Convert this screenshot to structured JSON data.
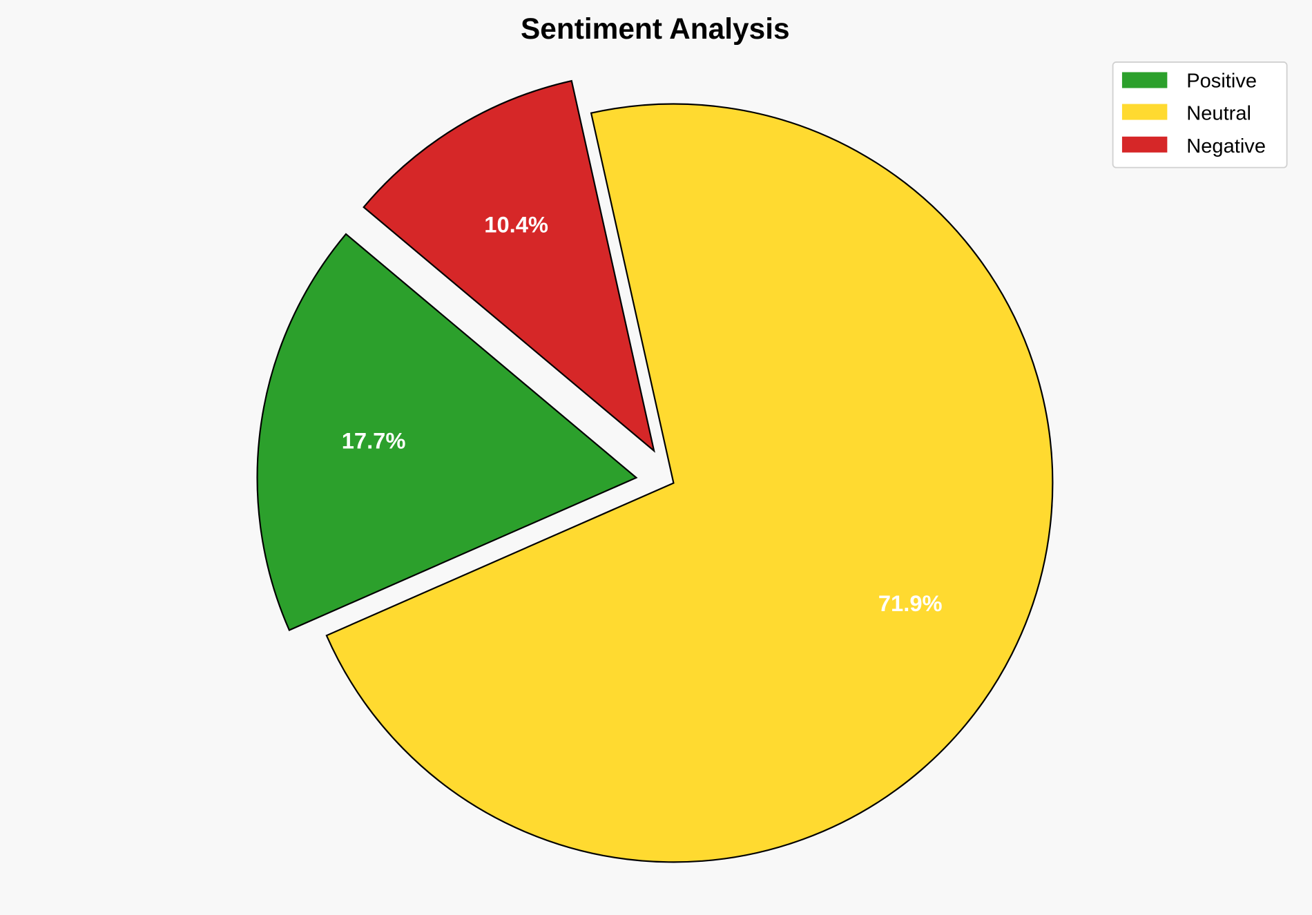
{
  "chart_data": {
    "type": "pie",
    "title": "Sentiment Analysis",
    "categories": [
      "Positive",
      "Neutral",
      "Negative"
    ],
    "values": [
      17.7,
      71.9,
      10.4
    ],
    "labels": [
      "17.7%",
      "71.9%",
      "10.4%"
    ],
    "colors": [
      "#2ca02c",
      "#ffda30",
      "#d62728"
    ],
    "exploded": [
      true,
      false,
      true
    ],
    "start_angle_deg": 140,
    "direction": "counterclockwise",
    "edge_color": "#000000",
    "legend_position": "top-right"
  }
}
